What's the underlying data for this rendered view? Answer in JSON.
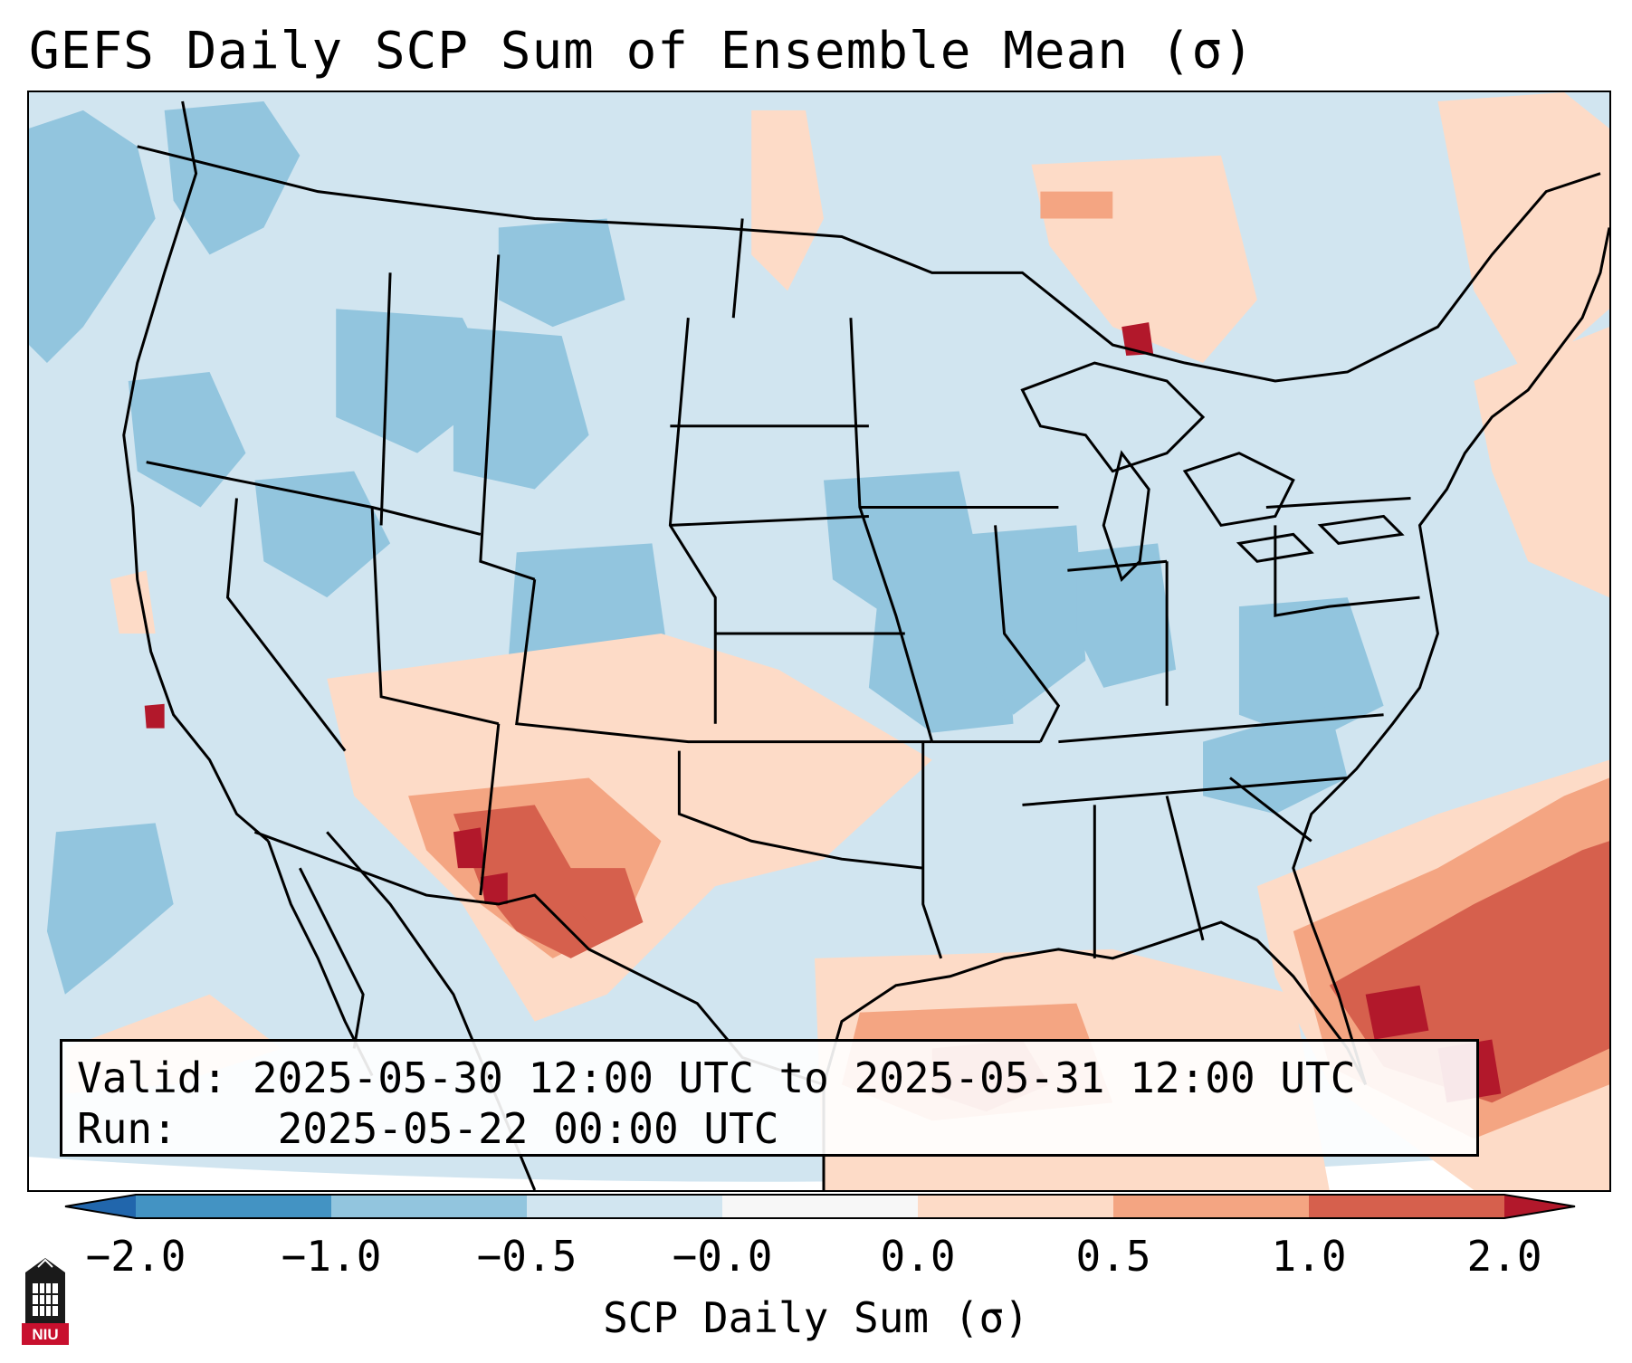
{
  "title": "GEFS Daily SCP Sum of Ensemble Mean (σ)",
  "info": {
    "valid_label": "Valid:",
    "valid_value": "2025-05-30 12:00 UTC to 2025-05-31 12:00 UTC",
    "run_label": "Run:",
    "run_value": "2025-05-22 00:00 UTC"
  },
  "colorbar": {
    "label": "SCP Daily Sum (σ)",
    "ticks": [
      "−2.0",
      "−1.0",
      "−0.5",
      "−0.0",
      "0.0",
      "0.5",
      "1.0",
      "2.0"
    ],
    "colors": {
      "lt_-2": "#2166ac",
      "-2_-1": "#4393c3",
      "-1_-0.5": "#92c5de",
      "-0.5_0": "#d1e5f0",
      "0_0": "#f7f7f7",
      "0_0.5": "#fddbc7",
      "0.5_1": "#f4a582",
      "1_2": "#d6604d",
      "gt_2": "#b2182b"
    }
  },
  "logo": {
    "text": "NIU"
  }
}
